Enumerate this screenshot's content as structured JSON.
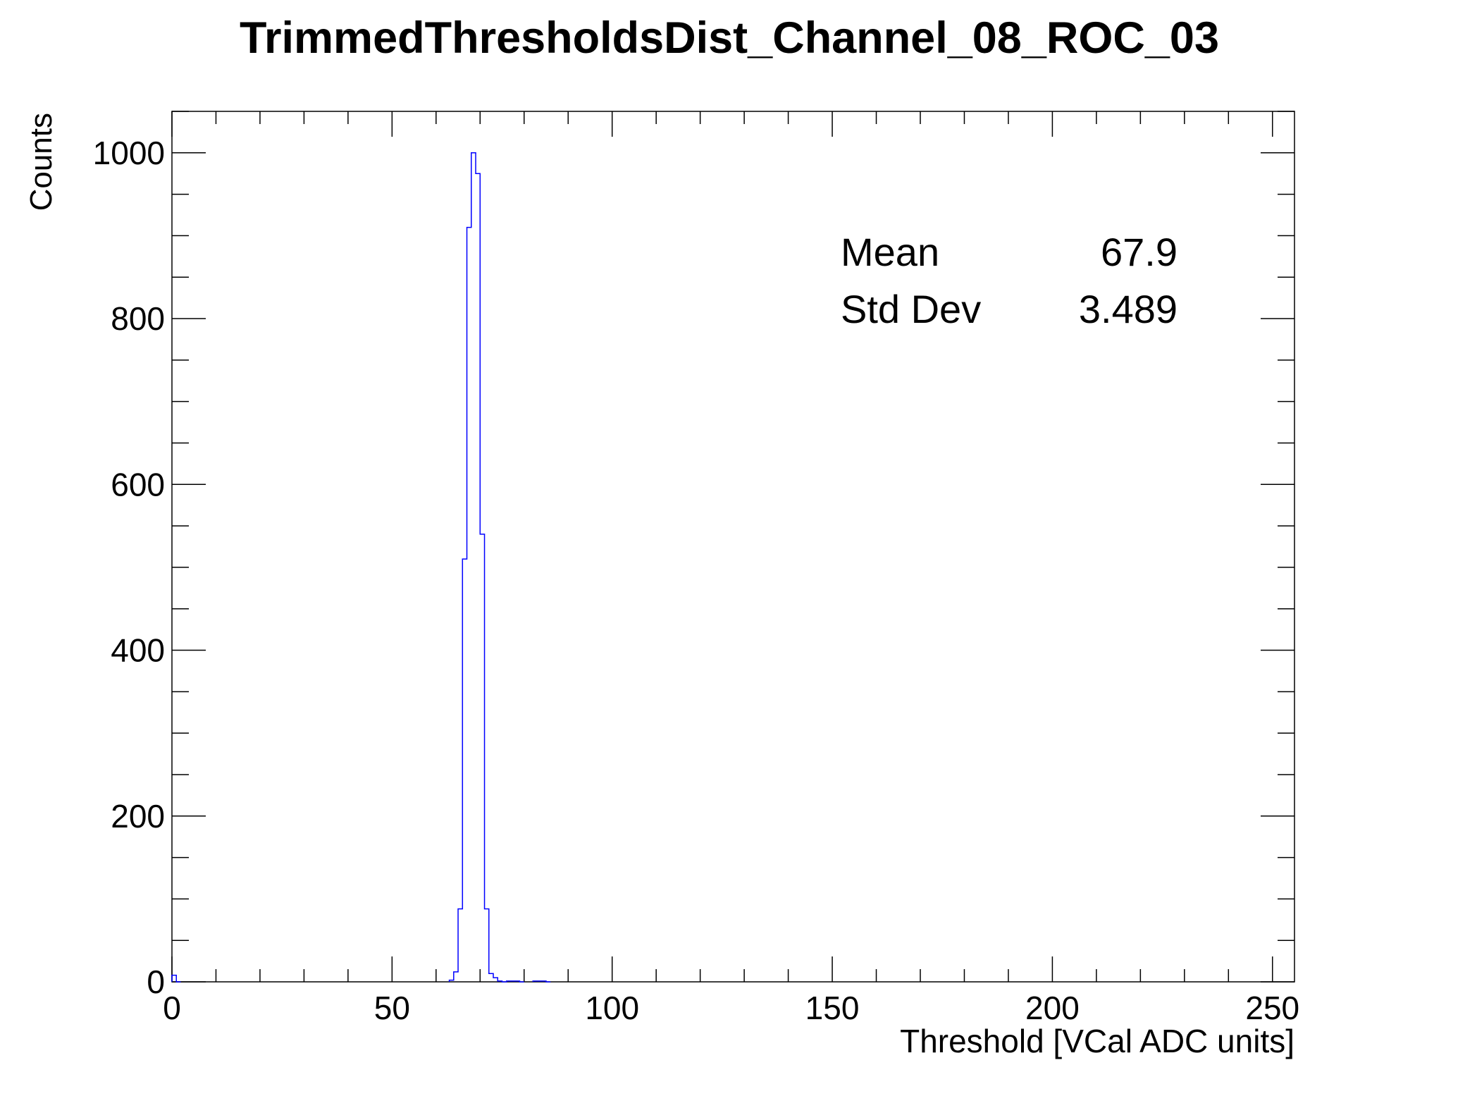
{
  "chart_data": {
    "type": "histogram",
    "title": "TrimmedThresholdsDist_Channel_08_ROC_03",
    "xlabel": "Threshold [VCal ADC units]",
    "ylabel": "Counts",
    "xlim": [
      0,
      255
    ],
    "ylim": [
      0,
      1050
    ],
    "x_major_ticks": [
      0,
      50,
      100,
      150,
      200,
      250
    ],
    "x_tick_labels": [
      "0",
      "50",
      "100",
      "150",
      "200",
      "250"
    ],
    "y_major_ticks": [
      0,
      200,
      400,
      600,
      800,
      1000
    ],
    "y_tick_labels": [
      "0",
      "200",
      "400",
      "600",
      "800",
      "1000"
    ],
    "bin_width": 1,
    "line_color": "#0000ff",
    "legend": "top-right",
    "grid": false,
    "bins": [
      {
        "x": 0,
        "count": 8
      },
      {
        "x": 1,
        "count": 0
      },
      {
        "x": 63,
        "count": 2
      },
      {
        "x": 64,
        "count": 12
      },
      {
        "x": 65,
        "count": 88
      },
      {
        "x": 66,
        "count": 510
      },
      {
        "x": 67,
        "count": 910
      },
      {
        "x": 68,
        "count": 1000
      },
      {
        "x": 69,
        "count": 975
      },
      {
        "x": 70,
        "count": 540
      },
      {
        "x": 71,
        "count": 88
      },
      {
        "x": 72,
        "count": 10
      },
      {
        "x": 73,
        "count": 5
      },
      {
        "x": 74,
        "count": 1
      },
      {
        "x": 75,
        "count": 0
      },
      {
        "x": 76,
        "count": 1
      },
      {
        "x": 77,
        "count": 1
      },
      {
        "x": 78,
        "count": 1
      },
      {
        "x": 79,
        "count": 0
      },
      {
        "x": 82,
        "count": 1
      },
      {
        "x": 83,
        "count": 1
      },
      {
        "x": 84,
        "count": 1
      },
      {
        "x": 85,
        "count": 0
      }
    ],
    "stats": {
      "mean_label": "Mean",
      "mean_value": "67.9",
      "std_label": "Std Dev",
      "std_value": "3.489"
    }
  }
}
